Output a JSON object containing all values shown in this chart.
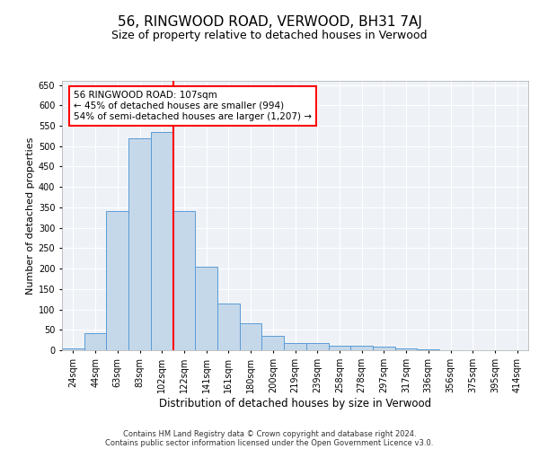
{
  "title1": "56, RINGWOOD ROAD, VERWOOD, BH31 7AJ",
  "title2": "Size of property relative to detached houses in Verwood",
  "xlabel": "Distribution of detached houses by size in Verwood",
  "ylabel": "Number of detached properties",
  "footnote1": "Contains HM Land Registry data © Crown copyright and database right 2024.",
  "footnote2": "Contains public sector information licensed under the Open Government Licence v3.0.",
  "categories": [
    "24sqm",
    "44sqm",
    "63sqm",
    "83sqm",
    "102sqm",
    "122sqm",
    "141sqm",
    "161sqm",
    "180sqm",
    "200sqm",
    "219sqm",
    "239sqm",
    "258sqm",
    "278sqm",
    "297sqm",
    "317sqm",
    "336sqm",
    "356sqm",
    "375sqm",
    "395sqm",
    "414sqm"
  ],
  "values": [
    5,
    42,
    340,
    520,
    535,
    342,
    205,
    115,
    65,
    35,
    18,
    18,
    12,
    10,
    8,
    4,
    2,
    1,
    1,
    1,
    1
  ],
  "bar_color": "#c5d8ea",
  "bar_edge_color": "#5b9bd5",
  "vline_x": 4.5,
  "vline_color": "red",
  "annotation_text": "56 RINGWOOD ROAD: 107sqm\n← 45% of detached houses are smaller (994)\n54% of semi-detached houses are larger (1,207) →",
  "annotation_box_color": "white",
  "annotation_box_edge": "red",
  "ylim": [
    0,
    660
  ],
  "yticks": [
    0,
    50,
    100,
    150,
    200,
    250,
    300,
    350,
    400,
    450,
    500,
    550,
    600,
    650
  ],
  "background_color": "#eef2f7",
  "grid_color": "white",
  "title1_fontsize": 11,
  "title2_fontsize": 9,
  "xlabel_fontsize": 8.5,
  "ylabel_fontsize": 8,
  "tick_fontsize": 7,
  "footnote_fontsize": 6,
  "annotation_fontsize": 7.5
}
